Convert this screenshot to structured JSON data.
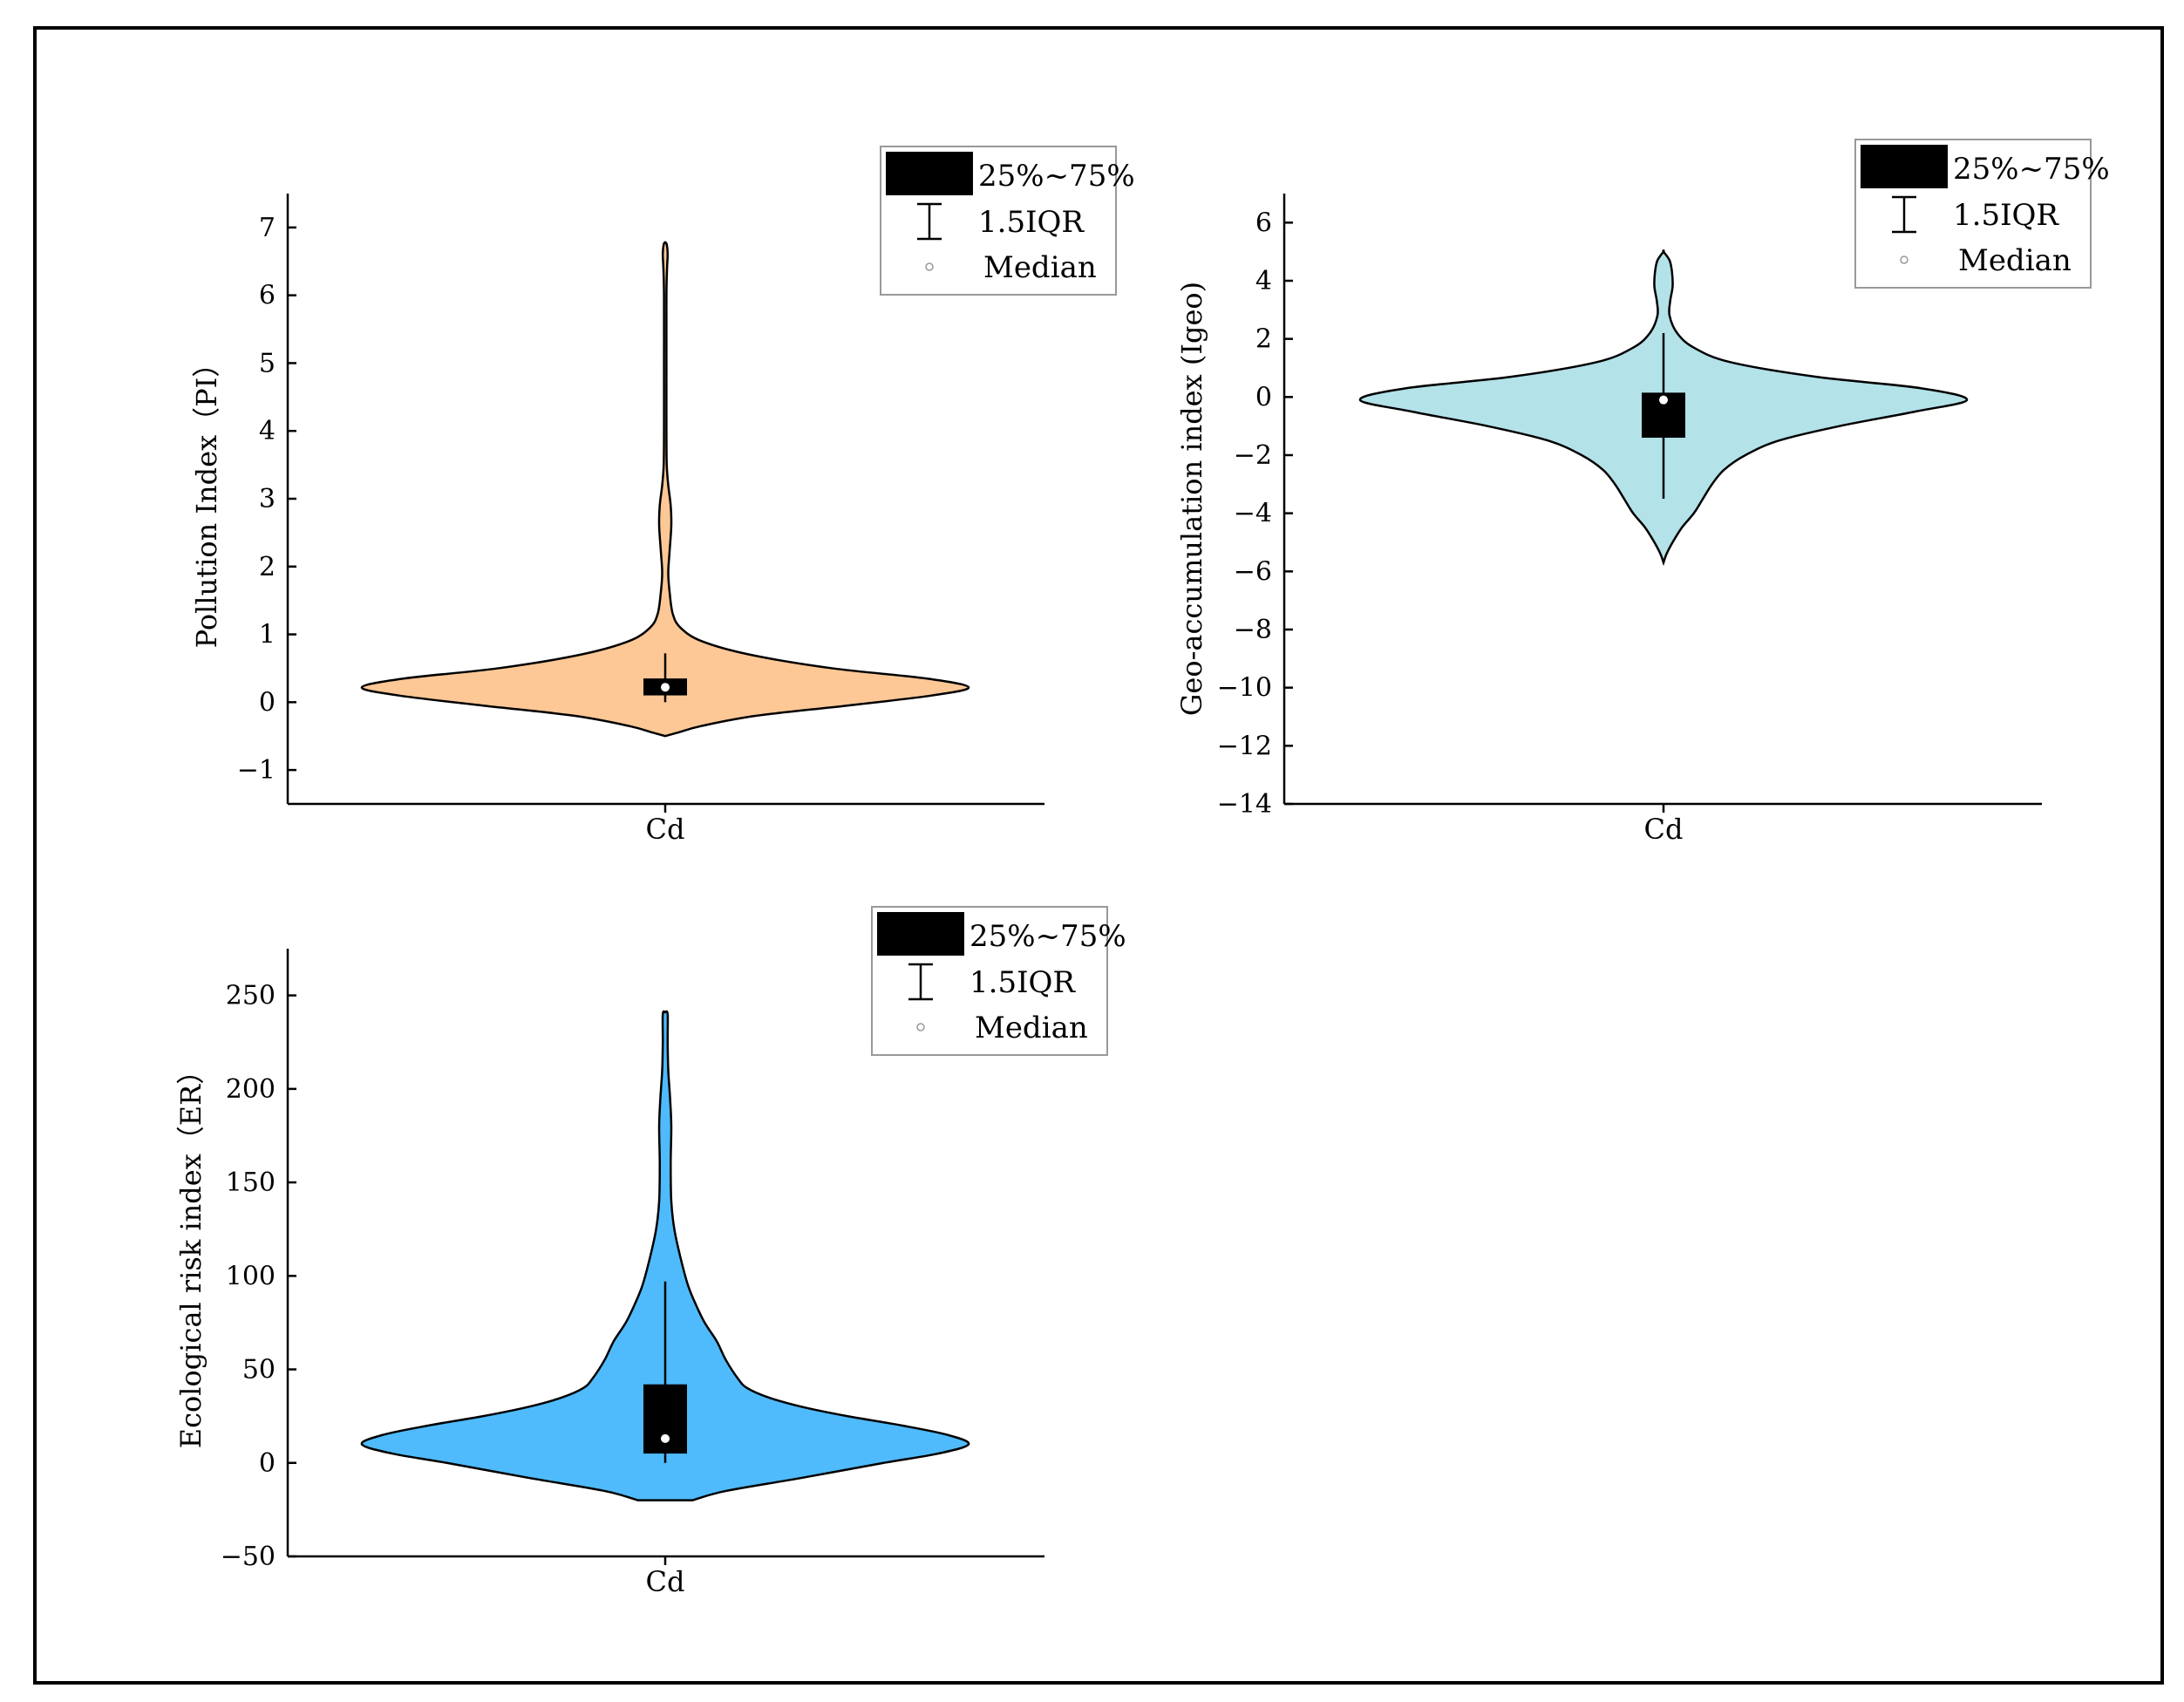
{
  "chart_data": [
    {
      "type": "violin",
      "id": "pi",
      "ylabel": "Pollution Index（PI）",
      "categories": [
        "Cd"
      ],
      "ylim": [
        -1.5,
        7.5
      ],
      "yticks": [
        -1,
        0,
        1,
        2,
        3,
        4,
        5,
        6,
        7
      ],
      "ytick_labels": [
        "−1",
        "0",
        "1",
        "2",
        "3",
        "4",
        "5",
        "6",
        "7"
      ],
      "fill_color": "#FDC896",
      "box": {
        "q1": 0.1,
        "q3": 0.35,
        "median": 0.22,
        "whisker_low": 0.0,
        "whisker_high": 0.72
      },
      "density": [
        [
          -0.5,
          0.0
        ],
        [
          -0.45,
          0.04
        ],
        [
          -0.35,
          0.12
        ],
        [
          -0.2,
          0.3
        ],
        [
          -0.05,
          0.6
        ],
        [
          0.1,
          0.88
        ],
        [
          0.22,
          1.0
        ],
        [
          0.35,
          0.86
        ],
        [
          0.5,
          0.55
        ],
        [
          0.7,
          0.28
        ],
        [
          0.9,
          0.12
        ],
        [
          1.1,
          0.05
        ],
        [
          1.3,
          0.025
        ],
        [
          1.6,
          0.015
        ],
        [
          1.9,
          0.01
        ],
        [
          2.2,
          0.014
        ],
        [
          2.6,
          0.02
        ],
        [
          2.9,
          0.018
        ],
        [
          3.2,
          0.01
        ],
        [
          3.5,
          0.005
        ],
        [
          4.0,
          0.004
        ],
        [
          5.0,
          0.004
        ],
        [
          6.0,
          0.004
        ],
        [
          6.4,
          0.006
        ],
        [
          6.6,
          0.008
        ],
        [
          6.75,
          0.005
        ],
        [
          6.78,
          0.0
        ]
      ],
      "legend": {
        "box_label": "25%~75%",
        "whisker_label": "1.5IQR",
        "median_label": "Median"
      }
    },
    {
      "type": "violin",
      "id": "igeo",
      "ylabel": "Geo-accumulation index (Igeo)",
      "categories": [
        "Cd"
      ],
      "ylim": [
        -14,
        7
      ],
      "yticks": [
        -14,
        -12,
        -10,
        -8,
        -6,
        -4,
        -2,
        0,
        2,
        4,
        6
      ],
      "ytick_labels": [
        "−14",
        "−12",
        "−10",
        "−8",
        "−6",
        "−4",
        "−2",
        "0",
        "2",
        "4",
        "6"
      ],
      "fill_color": "#B3E2E9",
      "box": {
        "q1": -1.4,
        "q3": 0.15,
        "median": -0.1,
        "whisker_low": -3.5,
        "whisker_high": 2.2
      },
      "density": [
        [
          -5.7,
          0.0
        ],
        [
          -5.4,
          0.01
        ],
        [
          -5.0,
          0.03
        ],
        [
          -4.5,
          0.06
        ],
        [
          -4.0,
          0.1
        ],
        [
          -3.5,
          0.13
        ],
        [
          -3.0,
          0.16
        ],
        [
          -2.5,
          0.2
        ],
        [
          -2.0,
          0.27
        ],
        [
          -1.5,
          0.38
        ],
        [
          -1.0,
          0.58
        ],
        [
          -0.5,
          0.83
        ],
        [
          -0.1,
          1.0
        ],
        [
          0.3,
          0.85
        ],
        [
          0.7,
          0.5
        ],
        [
          1.2,
          0.22
        ],
        [
          1.7,
          0.1
        ],
        [
          2.2,
          0.045
        ],
        [
          2.8,
          0.02
        ],
        [
          3.3,
          0.022
        ],
        [
          3.8,
          0.03
        ],
        [
          4.3,
          0.028
        ],
        [
          4.7,
          0.02
        ],
        [
          5.0,
          0.0
        ]
      ],
      "legend": {
        "box_label": "25%~75%",
        "whisker_label": "1.5IQR",
        "median_label": "Median"
      }
    },
    {
      "type": "violin",
      "id": "er",
      "ylabel": "Ecological risk index（ER）",
      "categories": [
        "Cd"
      ],
      "ylim": [
        -50,
        275
      ],
      "yticks": [
        -50,
        0,
        50,
        100,
        150,
        200,
        250
      ],
      "ytick_labels": [
        "−50",
        "0",
        "50",
        "100",
        "150",
        "200",
        "250"
      ],
      "fill_color": "#4FBBFC",
      "box": {
        "q1": 5,
        "q3": 42,
        "median": 13,
        "whisker_low": 0,
        "whisker_high": 97
      },
      "density": [
        [
          -20,
          0.09
        ],
        [
          -15,
          0.2
        ],
        [
          -8,
          0.45
        ],
        [
          0,
          0.72
        ],
        [
          5,
          0.9
        ],
        [
          10,
          1.0
        ],
        [
          15,
          0.93
        ],
        [
          20,
          0.78
        ],
        [
          25,
          0.6
        ],
        [
          30,
          0.45
        ],
        [
          35,
          0.34
        ],
        [
          40,
          0.27
        ],
        [
          45,
          0.24
        ],
        [
          55,
          0.2
        ],
        [
          65,
          0.17
        ],
        [
          75,
          0.13
        ],
        [
          85,
          0.1
        ],
        [
          95,
          0.075
        ],
        [
          110,
          0.05
        ],
        [
          125,
          0.03
        ],
        [
          140,
          0.02
        ],
        [
          160,
          0.018
        ],
        [
          180,
          0.02
        ],
        [
          195,
          0.016
        ],
        [
          210,
          0.01
        ],
        [
          225,
          0.008
        ],
        [
          240,
          0.008
        ],
        [
          241,
          0.0
        ]
      ],
      "legend": {
        "box_label": "25%~75%",
        "whisker_label": "1.5IQR",
        "median_label": "Median"
      }
    }
  ]
}
